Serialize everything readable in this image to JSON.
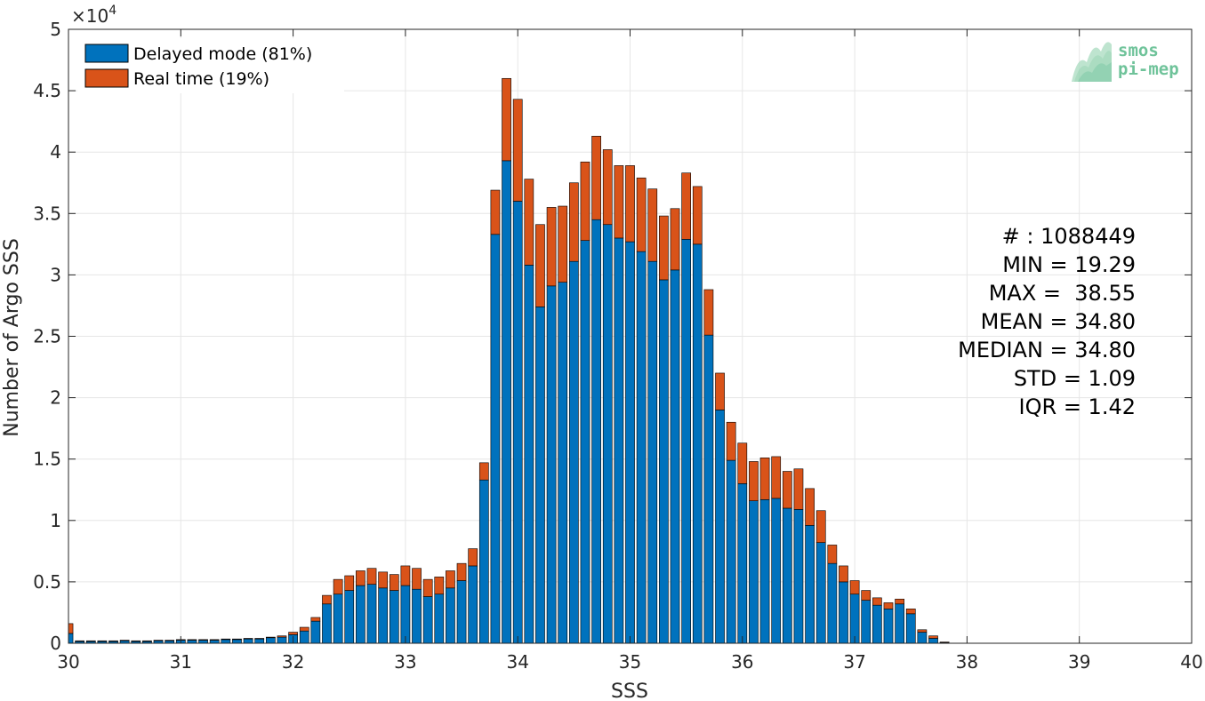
{
  "colors": {
    "delayed": "#0072BD",
    "realtime": "#D95319",
    "grid": "#e6e6e6",
    "axis": "#262626",
    "logo": "#6fc39a"
  },
  "axis_multiplier": {
    "base": "×10",
    "exponent": "4"
  },
  "legend": [
    {
      "label": "Delayed mode (81%)",
      "color": "#0072BD"
    },
    {
      "label": "Real time (19%)",
      "color": "#D95319"
    }
  ],
  "stats": [
    "# : 1088449",
    "MIN = 19.29",
    "MAX =  38.55",
    "MEAN = 34.80",
    "MEDIAN = 34.80",
    "STD = 1.09",
    "IQR = 1.42"
  ],
  "logo": {
    "line1": "smos",
    "line2": "pi-mep"
  },
  "chart_data": {
    "type": "bar",
    "stacked": true,
    "xlabel": "SSS",
    "ylabel": "Number of Argo SSS",
    "xlim": [
      30,
      40
    ],
    "ylim": [
      0,
      50000
    ],
    "xticks": [
      30,
      31,
      32,
      33,
      34,
      35,
      36,
      37,
      38,
      39,
      40
    ],
    "yticks": [
      0,
      5000,
      10000,
      15000,
      20000,
      25000,
      30000,
      35000,
      40000,
      45000,
      50000
    ],
    "ytick_labels": [
      "0",
      "0.5",
      "1",
      "1.5",
      "2",
      "2.5",
      "3",
      "3.5",
      "4",
      "4.5",
      "5"
    ],
    "xtick_labels": [
      "30",
      "31",
      "32",
      "33",
      "34",
      "35",
      "36",
      "37",
      "38",
      "39",
      "40"
    ],
    "grid": true,
    "legend_position": "top-left",
    "bin_width": 0.1,
    "bin_centers": [
      30.0,
      30.1,
      30.2,
      30.3,
      30.4,
      30.5,
      30.6,
      30.7,
      30.8,
      30.9,
      31.0,
      31.1,
      31.2,
      31.3,
      31.4,
      31.5,
      31.6,
      31.7,
      31.8,
      31.9,
      32.0,
      32.1,
      32.2,
      32.3,
      32.4,
      32.5,
      32.6,
      32.7,
      32.8,
      32.9,
      33.0,
      33.1,
      33.2,
      33.3,
      33.4,
      33.5,
      33.6,
      33.7,
      33.8,
      33.9,
      34.0,
      34.1,
      34.2,
      34.3,
      34.4,
      34.5,
      34.6,
      34.7,
      34.8,
      34.9,
      35.0,
      35.1,
      35.2,
      35.3,
      35.4,
      35.5,
      35.6,
      35.7,
      35.8,
      35.9,
      36.0,
      36.1,
      36.2,
      36.3,
      36.4,
      36.5,
      36.6,
      36.7,
      36.8,
      36.9,
      37.0,
      37.1,
      37.2,
      37.3,
      37.4,
      37.5,
      37.6,
      37.7,
      37.8
    ],
    "series": [
      {
        "name": "Delayed mode (81%)",
        "values": [
          800,
          150,
          150,
          150,
          150,
          200,
          150,
          150,
          200,
          200,
          250,
          250,
          250,
          250,
          300,
          300,
          350,
          350,
          450,
          500,
          700,
          1000,
          1800,
          3200,
          4000,
          4300,
          4700,
          4800,
          4500,
          4300,
          4700,
          4400,
          3800,
          4000,
          4500,
          5100,
          6300,
          13300,
          33300,
          39300,
          36000,
          30800,
          27400,
          29100,
          29400,
          31100,
          32800,
          34500,
          34100,
          33000,
          32700,
          31900,
          31100,
          29600,
          30400,
          32900,
          32500,
          25100,
          19000,
          14900,
          13000,
          11600,
          11700,
          11800,
          11000,
          10900,
          9600,
          8200,
          6500,
          5000,
          4000,
          3500,
          3100,
          2800,
          3200,
          2400,
          900,
          400,
          50
        ]
      },
      {
        "name": "Real time (19%)",
        "values": [
          800,
          50,
          50,
          50,
          50,
          50,
          50,
          50,
          50,
          50,
          50,
          50,
          50,
          50,
          50,
          50,
          50,
          50,
          50,
          100,
          200,
          300,
          300,
          700,
          1200,
          1200,
          1200,
          1300,
          1300,
          1300,
          1600,
          1700,
          1400,
          1400,
          1400,
          1400,
          1400,
          1400,
          3600,
          6700,
          8300,
          7000,
          6700,
          6400,
          6200,
          6400,
          6400,
          6800,
          6100,
          5900,
          6200,
          6000,
          5900,
          5200,
          5000,
          5400,
          4700,
          3700,
          3000,
          3100,
          3300,
          3200,
          3400,
          3400,
          3000,
          3300,
          3000,
          2600,
          1500,
          1300,
          1100,
          800,
          600,
          500,
          400,
          400,
          200,
          200,
          50
        ]
      }
    ]
  }
}
